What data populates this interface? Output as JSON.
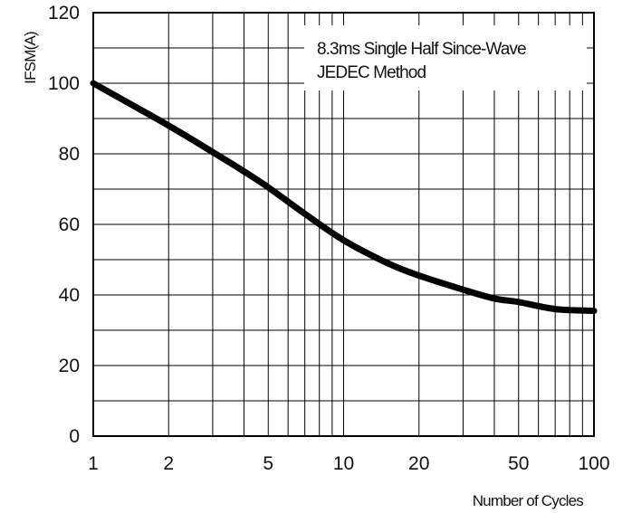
{
  "chart_data": {
    "type": "line",
    "title": "",
    "xlabel": "Number of Cycles",
    "ylabel": "IFSM(A)",
    "x_scale": "log",
    "xlim": [
      1,
      100
    ],
    "ylim": [
      0,
      120
    ],
    "x_ticks": [
      1,
      2,
      5,
      10,
      20,
      50,
      100
    ],
    "y_ticks": [
      0,
      20,
      40,
      60,
      80,
      100,
      120
    ],
    "grid": true,
    "annotation": [
      "8.3ms Single Half Since-Wave",
      "JEDEC Method"
    ],
    "series": [
      {
        "x": [
          1,
          1.5,
          2,
          3,
          4,
          5,
          7,
          10,
          15,
          20,
          30,
          40,
          50,
          70,
          100
        ],
        "y": [
          100,
          93,
          88,
          80.5,
          75,
          70.5,
          63,
          55.5,
          49,
          45.5,
          41.5,
          39,
          38,
          36,
          35.5
        ]
      }
    ]
  }
}
